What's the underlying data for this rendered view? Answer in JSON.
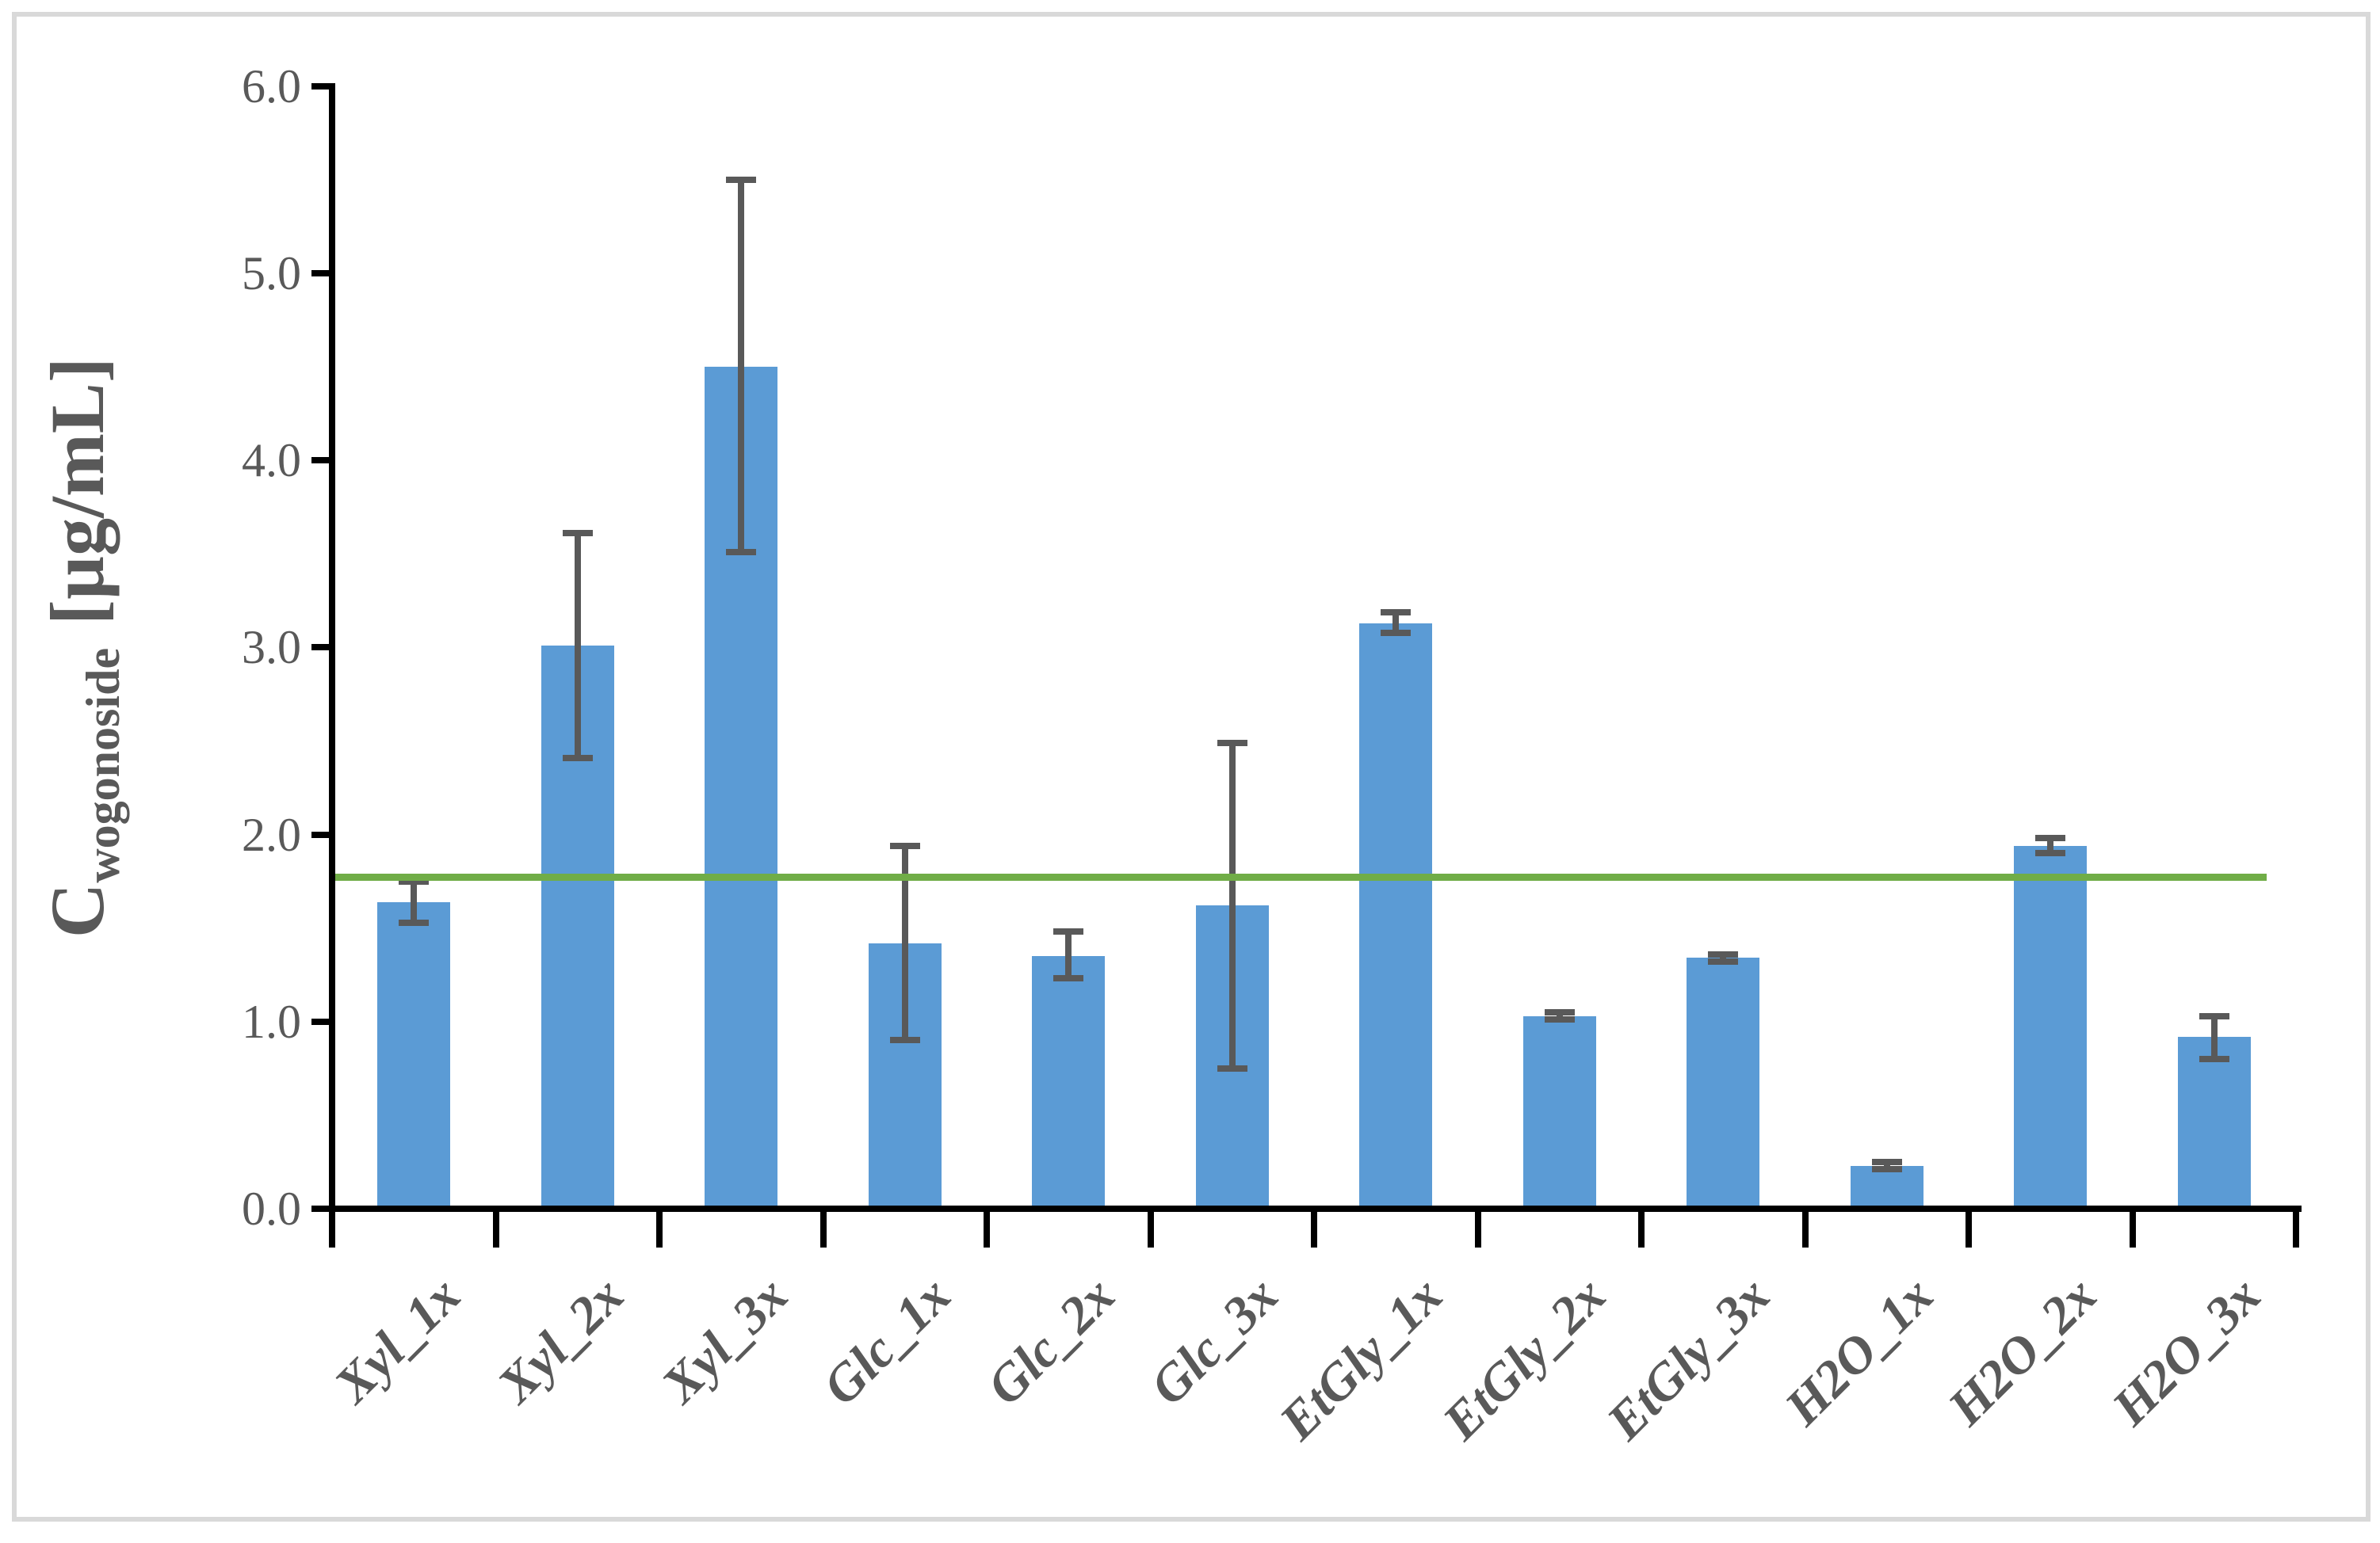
{
  "figure": {
    "background": "#FFFFFF",
    "border_color": "#D9D9D9"
  },
  "chart_data": {
    "type": "bar",
    "title": "",
    "categories": [
      "Xyl_1x",
      "Xyl_2x",
      "Xyl_3x",
      "Glc_1x",
      "Glc_2x",
      "Glc_3x",
      "EtGly_1x",
      "EtGly_2x",
      "EtGly_3x",
      "H2O_1x",
      "H2O_2x",
      "H2O_3x"
    ],
    "values": [
      1.64,
      3.01,
      4.5,
      1.42,
      1.35,
      1.62,
      3.13,
      1.03,
      1.34,
      0.23,
      1.94,
      0.92
    ],
    "errors_plus": [
      0.11,
      0.6,
      1.0,
      0.52,
      0.13,
      0.87,
      0.06,
      0.02,
      0.02,
      0.02,
      0.04,
      0.11
    ],
    "errors_minus": [
      0.11,
      0.6,
      0.99,
      0.52,
      0.12,
      0.87,
      0.05,
      0.02,
      0.02,
      0.02,
      0.04,
      0.12
    ],
    "ylabel": {
      "symbol": "C",
      "subscript": "wogonoside",
      "units": "[µg/mL]"
    },
    "xlabel": "",
    "ytick_labels": [
      "6.0",
      "5.0",
      "4.0",
      "3.0",
      "2.0",
      "1.0",
      "0.0"
    ],
    "ylim": [
      0.0,
      6.0
    ],
    "ytick_step": 1.0,
    "reference_line": {
      "value": 1.77,
      "color": "#70AD47"
    },
    "bar_color": "#5B9BD5",
    "error_bar_color": "#595959",
    "axis_color": "#000000",
    "tick_label_color": "#595959",
    "grid": false,
    "legend": null
  }
}
